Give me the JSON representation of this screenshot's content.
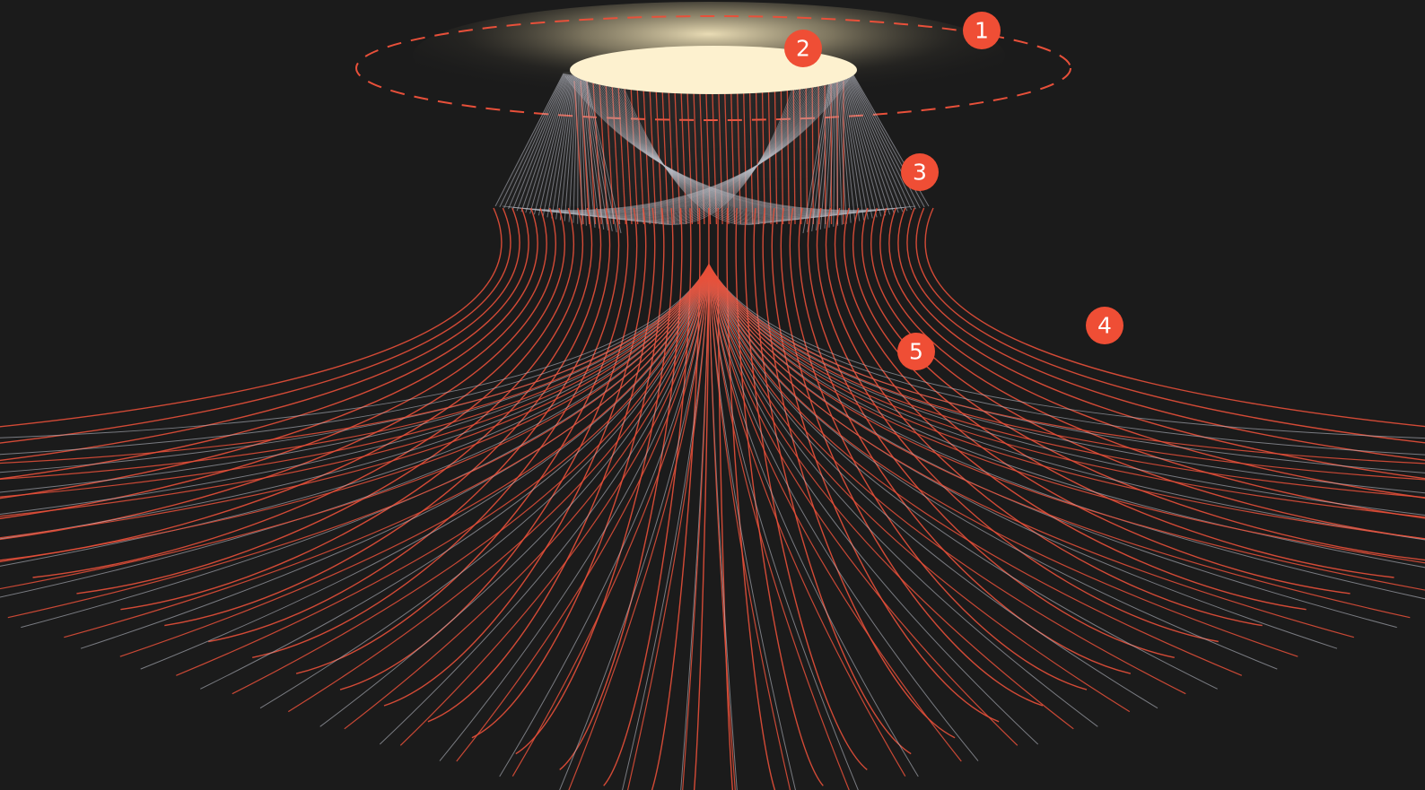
{
  "colors": {
    "background": "#1b1b1b",
    "red_line": "#e8503a",
    "grey_line": "#b9bcc6",
    "badge": "#ef4e35",
    "badge_text": "#ffffff",
    "light_disc": "#fdf1cf",
    "glow": "#e9dcb4"
  },
  "callouts": [
    {
      "number": "1"
    },
    {
      "number": "2"
    },
    {
      "number": "3"
    },
    {
      "number": "4"
    },
    {
      "number": "5"
    }
  ]
}
